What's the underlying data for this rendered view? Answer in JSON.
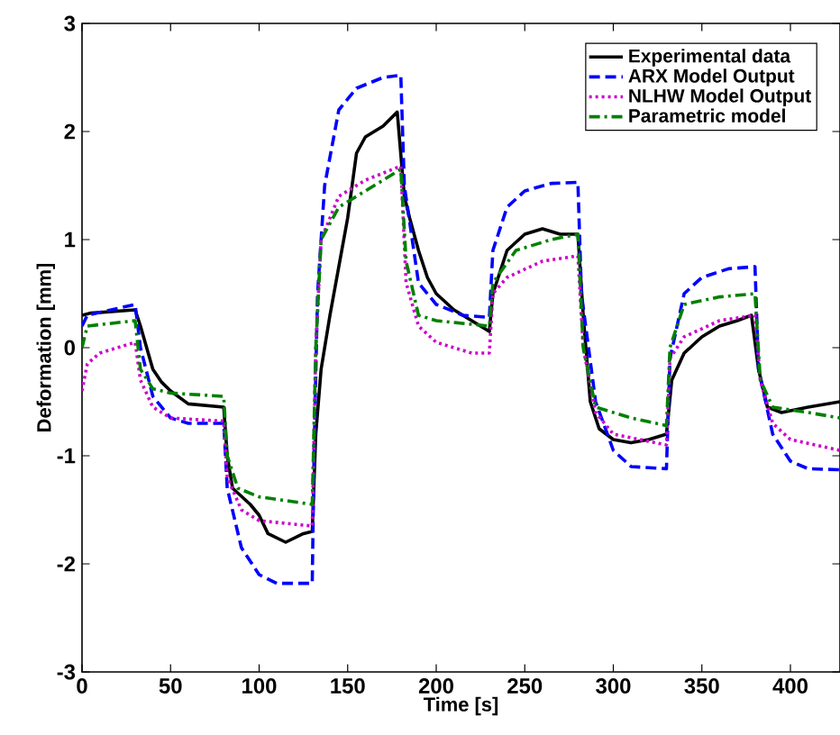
{
  "chart_data": {
    "type": "line",
    "xlabel": "Time [s]",
    "ylabel": "Deformation [mm]",
    "xlim": [
      0,
      428
    ],
    "ylim": [
      -3,
      3
    ],
    "xticks": [
      0,
      50,
      100,
      150,
      200,
      250,
      300,
      350,
      400
    ],
    "yticks": [
      -3,
      -2,
      -1,
      0,
      1,
      2,
      3
    ],
    "grid": false,
    "legend": "top right",
    "series": [
      {
        "name": "Experimental data",
        "color": "#000000",
        "line_style": "solid",
        "x": [
          0,
          5,
          30,
          33,
          40,
          45,
          50,
          60,
          80,
          82,
          85,
          95,
          100,
          105,
          115,
          125,
          130,
          132,
          135,
          140,
          150,
          155,
          160,
          170,
          178,
          182,
          185,
          190,
          195,
          200,
          210,
          220,
          230,
          232,
          240,
          250,
          260,
          270,
          280,
          283,
          287,
          292,
          300,
          310,
          320,
          330,
          333,
          340,
          350,
          360,
          370,
          378,
          382,
          387,
          395,
          410,
          428
        ],
        "values": [
          0.3,
          0.32,
          0.35,
          0.2,
          -0.2,
          -0.32,
          -0.4,
          -0.52,
          -0.55,
          -1.0,
          -1.3,
          -1.45,
          -1.55,
          -1.72,
          -1.8,
          -1.72,
          -1.7,
          -0.8,
          -0.2,
          0.3,
          1.2,
          1.8,
          1.95,
          2.05,
          2.18,
          1.4,
          1.2,
          0.9,
          0.65,
          0.5,
          0.35,
          0.25,
          0.15,
          0.5,
          0.9,
          1.05,
          1.1,
          1.05,
          1.05,
          0.3,
          -0.5,
          -0.75,
          -0.85,
          -0.88,
          -0.85,
          -0.8,
          -0.3,
          -0.05,
          0.1,
          0.2,
          0.25,
          0.3,
          -0.2,
          -0.55,
          -0.6,
          -0.55,
          -0.5
        ]
      },
      {
        "name": "ARX Model Output",
        "color": "#0000ff",
        "line_style": "dashed",
        "x": [
          0,
          3,
          30,
          33,
          40,
          50,
          60,
          80,
          82,
          90,
          100,
          110,
          130,
          131,
          133,
          137,
          145,
          155,
          170,
          180,
          182,
          190,
          200,
          215,
          230,
          232,
          240,
          250,
          265,
          280,
          282,
          290,
          300,
          310,
          330,
          332,
          340,
          350,
          365,
          380,
          382,
          390,
          400,
          410,
          428
        ],
        "values": [
          0.2,
          0.3,
          0.4,
          0.0,
          -0.45,
          -0.65,
          -0.7,
          -0.7,
          -1.3,
          -1.85,
          -2.1,
          -2.18,
          -2.18,
          -1.0,
          0.5,
          1.5,
          2.2,
          2.4,
          2.5,
          2.52,
          1.5,
          0.6,
          0.4,
          0.3,
          0.28,
          0.9,
          1.3,
          1.45,
          1.52,
          1.53,
          0.5,
          -0.5,
          -0.95,
          -1.1,
          -1.12,
          -0.1,
          0.5,
          0.65,
          0.73,
          0.75,
          -0.2,
          -0.8,
          -1.05,
          -1.12,
          -1.13
        ]
      },
      {
        "name": "NLHW Model Output",
        "color": "#cc00cc",
        "line_style": "dotted",
        "x": [
          0,
          3,
          10,
          30,
          33,
          40,
          50,
          80,
          82,
          90,
          100,
          130,
          132,
          135,
          145,
          160,
          180,
          183,
          190,
          200,
          220,
          230,
          232,
          240,
          260,
          280,
          283,
          290,
          300,
          330,
          332,
          340,
          360,
          380,
          383,
          390,
          400,
          428
        ],
        "values": [
          -0.4,
          -0.15,
          -0.05,
          0.05,
          -0.3,
          -0.55,
          -0.65,
          -0.68,
          -1.2,
          -1.5,
          -1.6,
          -1.65,
          0.0,
          1.0,
          1.4,
          1.55,
          1.68,
          0.6,
          0.2,
          0.05,
          -0.05,
          -0.05,
          0.5,
          0.65,
          0.8,
          0.85,
          0.0,
          -0.6,
          -0.8,
          -0.9,
          -0.1,
          0.1,
          0.25,
          0.3,
          -0.3,
          -0.7,
          -0.85,
          -0.95
        ]
      },
      {
        "name": "Parametric model",
        "color": "#008000",
        "line_style": "dashdotted",
        "x": [
          0,
          3,
          30,
          33,
          40,
          50,
          80,
          82,
          88,
          100,
          130,
          132,
          135,
          145,
          160,
          180,
          183,
          190,
          200,
          230,
          232,
          245,
          265,
          280,
          283,
          290,
          310,
          330,
          332,
          340,
          360,
          380,
          383,
          390,
          410,
          428
        ],
        "values": [
          0.0,
          0.2,
          0.25,
          -0.2,
          -0.38,
          -0.42,
          -0.45,
          -1.0,
          -1.3,
          -1.38,
          -1.45,
          0.0,
          1.0,
          1.3,
          1.45,
          1.65,
          0.8,
          0.3,
          0.25,
          0.2,
          0.6,
          0.9,
          1.0,
          1.05,
          0.0,
          -0.55,
          -0.65,
          -0.72,
          0.0,
          0.4,
          0.47,
          0.5,
          -0.3,
          -0.55,
          -0.6,
          -0.65
        ]
      }
    ]
  }
}
